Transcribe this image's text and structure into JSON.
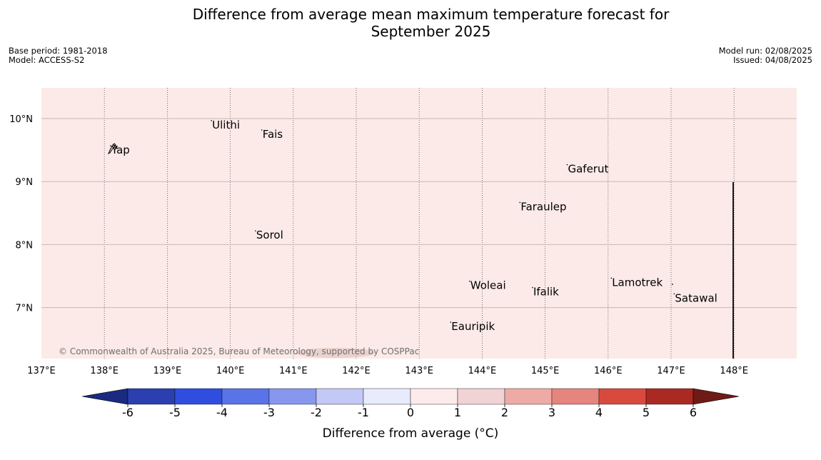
{
  "title": {
    "line1": "Difference from average mean maximum temperature forecast for",
    "line2": "September 2025"
  },
  "meta": {
    "base_period": "Base period: 1981-2018",
    "model": "Model: ACCESS-S2",
    "model_run": "Model run: 02/08/2025",
    "issued": "Issued: 04/08/2025"
  },
  "map": {
    "background_color": "#fbeae7",
    "lon_ticks": [
      {
        "value": 137,
        "label": "137°E"
      },
      {
        "value": 138,
        "label": "138°E"
      },
      {
        "value": 139,
        "label": "139°E"
      },
      {
        "value": 140,
        "label": "140°E"
      },
      {
        "value": 141,
        "label": "141°E"
      },
      {
        "value": 142,
        "label": "142°E"
      },
      {
        "value": 143,
        "label": "143°E"
      },
      {
        "value": 144,
        "label": "144°E"
      },
      {
        "value": 145,
        "label": "145°E"
      },
      {
        "value": 146,
        "label": "146°E"
      },
      {
        "value": 147,
        "label": "147°E"
      },
      {
        "value": 148,
        "label": "148°E"
      }
    ],
    "lat_ticks": [
      {
        "value": 10,
        "label": "10°N"
      },
      {
        "value": 9,
        "label": "9°N"
      },
      {
        "value": 8,
        "label": "8°N"
      },
      {
        "value": 7,
        "label": "7°N"
      }
    ],
    "places": [
      {
        "name": "Yap",
        "lon": 138.1,
        "lat": 9.5
      },
      {
        "name": "Ulithi",
        "lon": 139.7,
        "lat": 9.9
      },
      {
        "name": "Fais",
        "lon": 140.5,
        "lat": 9.75
      },
      {
        "name": "Gaferut",
        "lon": 145.35,
        "lat": 9.2
      },
      {
        "name": "Faraulep",
        "lon": 144.6,
        "lat": 8.6
      },
      {
        "name": "Sorol",
        "lon": 140.4,
        "lat": 8.15
      },
      {
        "name": "Lamotrek",
        "lon": 146.05,
        "lat": 7.4
      },
      {
        "name": "Woleai",
        "lon": 143.8,
        "lat": 7.35
      },
      {
        "name": "Ifalik",
        "lon": 144.8,
        "lat": 7.25
      },
      {
        "name": "Satawal",
        "lon": 147.05,
        "lat": 7.15
      },
      {
        "name": "Eauripik",
        "lon": 143.5,
        "lat": 6.7
      }
    ],
    "copyright": "© Commonwealth of Australia 2025, Bureau of Meteorology, supported by COSPPac"
  },
  "colorbar": {
    "title": "Difference from average (°C)",
    "ticks": [
      "-6",
      "-5",
      "-4",
      "-3",
      "-2",
      "-1",
      "0",
      "1",
      "2",
      "3",
      "4",
      "5",
      "6"
    ],
    "colors": [
      "#1a2a80",
      "#2b3fb0",
      "#2f4ee0",
      "#5a73e6",
      "#8797ee",
      "#c2c9f6",
      "#e8ebfc",
      "#fdeaea",
      "#f1d3d6",
      "#eeaba6",
      "#e6847e",
      "#d94a3e",
      "#aa2a23",
      "#6e1b17"
    ]
  }
}
